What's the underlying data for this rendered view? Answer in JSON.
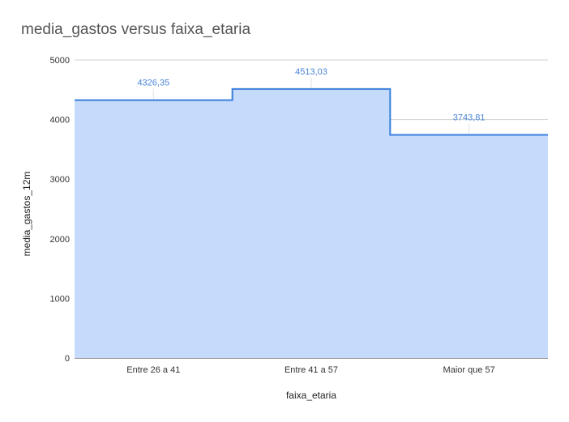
{
  "chart_data": {
    "type": "area",
    "step": true,
    "title": "media_gastos versus faixa_etaria",
    "xlabel": "faixa_etaria",
    "ylabel": "media_gastos_12m",
    "categories": [
      "Entre 26 a 41",
      "Entre 41 a 57",
      "Maior que 57"
    ],
    "values": [
      4326.35,
      4513.03,
      3743.81
    ],
    "value_labels": [
      "4326,35",
      "4513,03",
      "3743,81"
    ],
    "ylim": [
      0,
      5000
    ],
    "yticks": [
      "0",
      "1000",
      "2000",
      "3000",
      "4000",
      "5000"
    ],
    "ytick_values": [
      0,
      1000,
      2000,
      3000,
      4000,
      5000
    ],
    "grid": true,
    "colors": {
      "line": "#3a7fdc",
      "fill": "#c6dafb",
      "label": "#4a86d8",
      "grid": "#d0d0d0"
    }
  }
}
